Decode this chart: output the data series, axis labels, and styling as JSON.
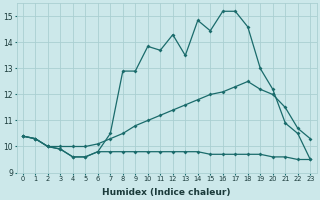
{
  "xlabel": "Humidex (Indice chaleur)",
  "bg_color": "#cce8ea",
  "grid_color": "#aacfd2",
  "line_color": "#1a6b6b",
  "xlim": [
    -0.5,
    23.5
  ],
  "ylim": [
    9.0,
    15.5
  ],
  "yticks": [
    9,
    10,
    11,
    12,
    13,
    14,
    15
  ],
  "xticks": [
    0,
    1,
    2,
    3,
    4,
    5,
    6,
    7,
    8,
    9,
    10,
    11,
    12,
    13,
    14,
    15,
    16,
    17,
    18,
    19,
    20,
    21,
    22,
    23
  ],
  "line1_x": [
    0,
    1,
    2,
    3,
    4,
    5,
    6,
    7,
    8,
    9,
    10,
    11,
    12,
    13,
    14,
    15,
    16,
    17,
    18,
    19,
    20,
    21,
    22,
    23
  ],
  "line1_y": [
    10.4,
    10.3,
    10.0,
    9.9,
    9.6,
    9.6,
    9.8,
    9.8,
    9.8,
    9.8,
    9.8,
    9.8,
    9.8,
    9.8,
    9.8,
    9.7,
    9.7,
    9.7,
    9.7,
    9.7,
    9.6,
    9.6,
    9.5,
    9.5
  ],
  "line2_x": [
    0,
    1,
    2,
    3,
    4,
    5,
    6,
    7,
    8,
    9,
    10,
    11,
    12,
    13,
    14,
    15,
    16,
    17,
    18,
    19,
    20,
    21,
    22,
    23
  ],
  "line2_y": [
    10.4,
    10.3,
    10.0,
    10.0,
    10.0,
    10.0,
    10.1,
    10.3,
    10.5,
    10.8,
    11.0,
    11.2,
    11.4,
    11.6,
    11.8,
    12.0,
    12.1,
    12.3,
    12.5,
    12.2,
    12.0,
    11.5,
    10.7,
    10.3
  ],
  "line3_x": [
    0,
    1,
    2,
    3,
    4,
    5,
    6,
    7,
    8,
    9,
    10,
    11,
    12,
    13,
    14,
    15,
    16,
    17,
    18,
    19,
    20,
    21,
    22,
    23
  ],
  "line3_y": [
    10.4,
    10.3,
    10.0,
    9.9,
    9.6,
    9.6,
    9.8,
    10.5,
    12.9,
    12.9,
    13.85,
    13.7,
    14.3,
    13.5,
    14.85,
    14.45,
    15.2,
    15.2,
    14.6,
    13.0,
    12.2,
    10.9,
    10.5,
    9.5
  ]
}
